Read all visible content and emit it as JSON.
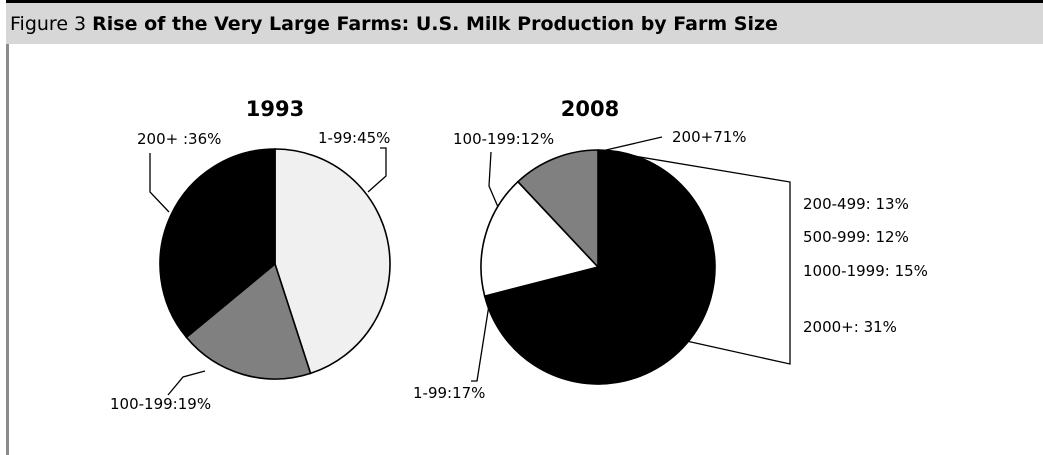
{
  "figure": {
    "number": "Figure 3",
    "title": "Rise of the Very Large Farms: U.S. Milk Production by Farm Size"
  },
  "chart_data": [
    {
      "type": "pie",
      "title": "1993",
      "slices": [
        {
          "label": "1-99:45%",
          "value": 45,
          "color": "#f0f0f0"
        },
        {
          "label": "100-199:19%",
          "value": 19,
          "color": "#808080"
        },
        {
          "label": "200+ :36%",
          "value": 36,
          "color": "#000000"
        }
      ]
    },
    {
      "type": "pie",
      "title": "2008",
      "slices": [
        {
          "label": "200+71%",
          "value": 71,
          "color": "#000000"
        },
        {
          "label": "1-99:17%",
          "value": 17,
          "color": "#ffffff"
        },
        {
          "label": "100-199:12%",
          "value": 12,
          "color": "#808080"
        }
      ],
      "breakdown": {
        "of": "200+71%",
        "items": [
          {
            "label": "200-499: 13%",
            "value": 13
          },
          {
            "label": "500-999: 12%",
            "value": 12
          },
          {
            "label": "1000-1999: 15%",
            "value": 15
          },
          {
            "label": "2000+: 31%",
            "value": 31
          }
        ]
      }
    }
  ]
}
